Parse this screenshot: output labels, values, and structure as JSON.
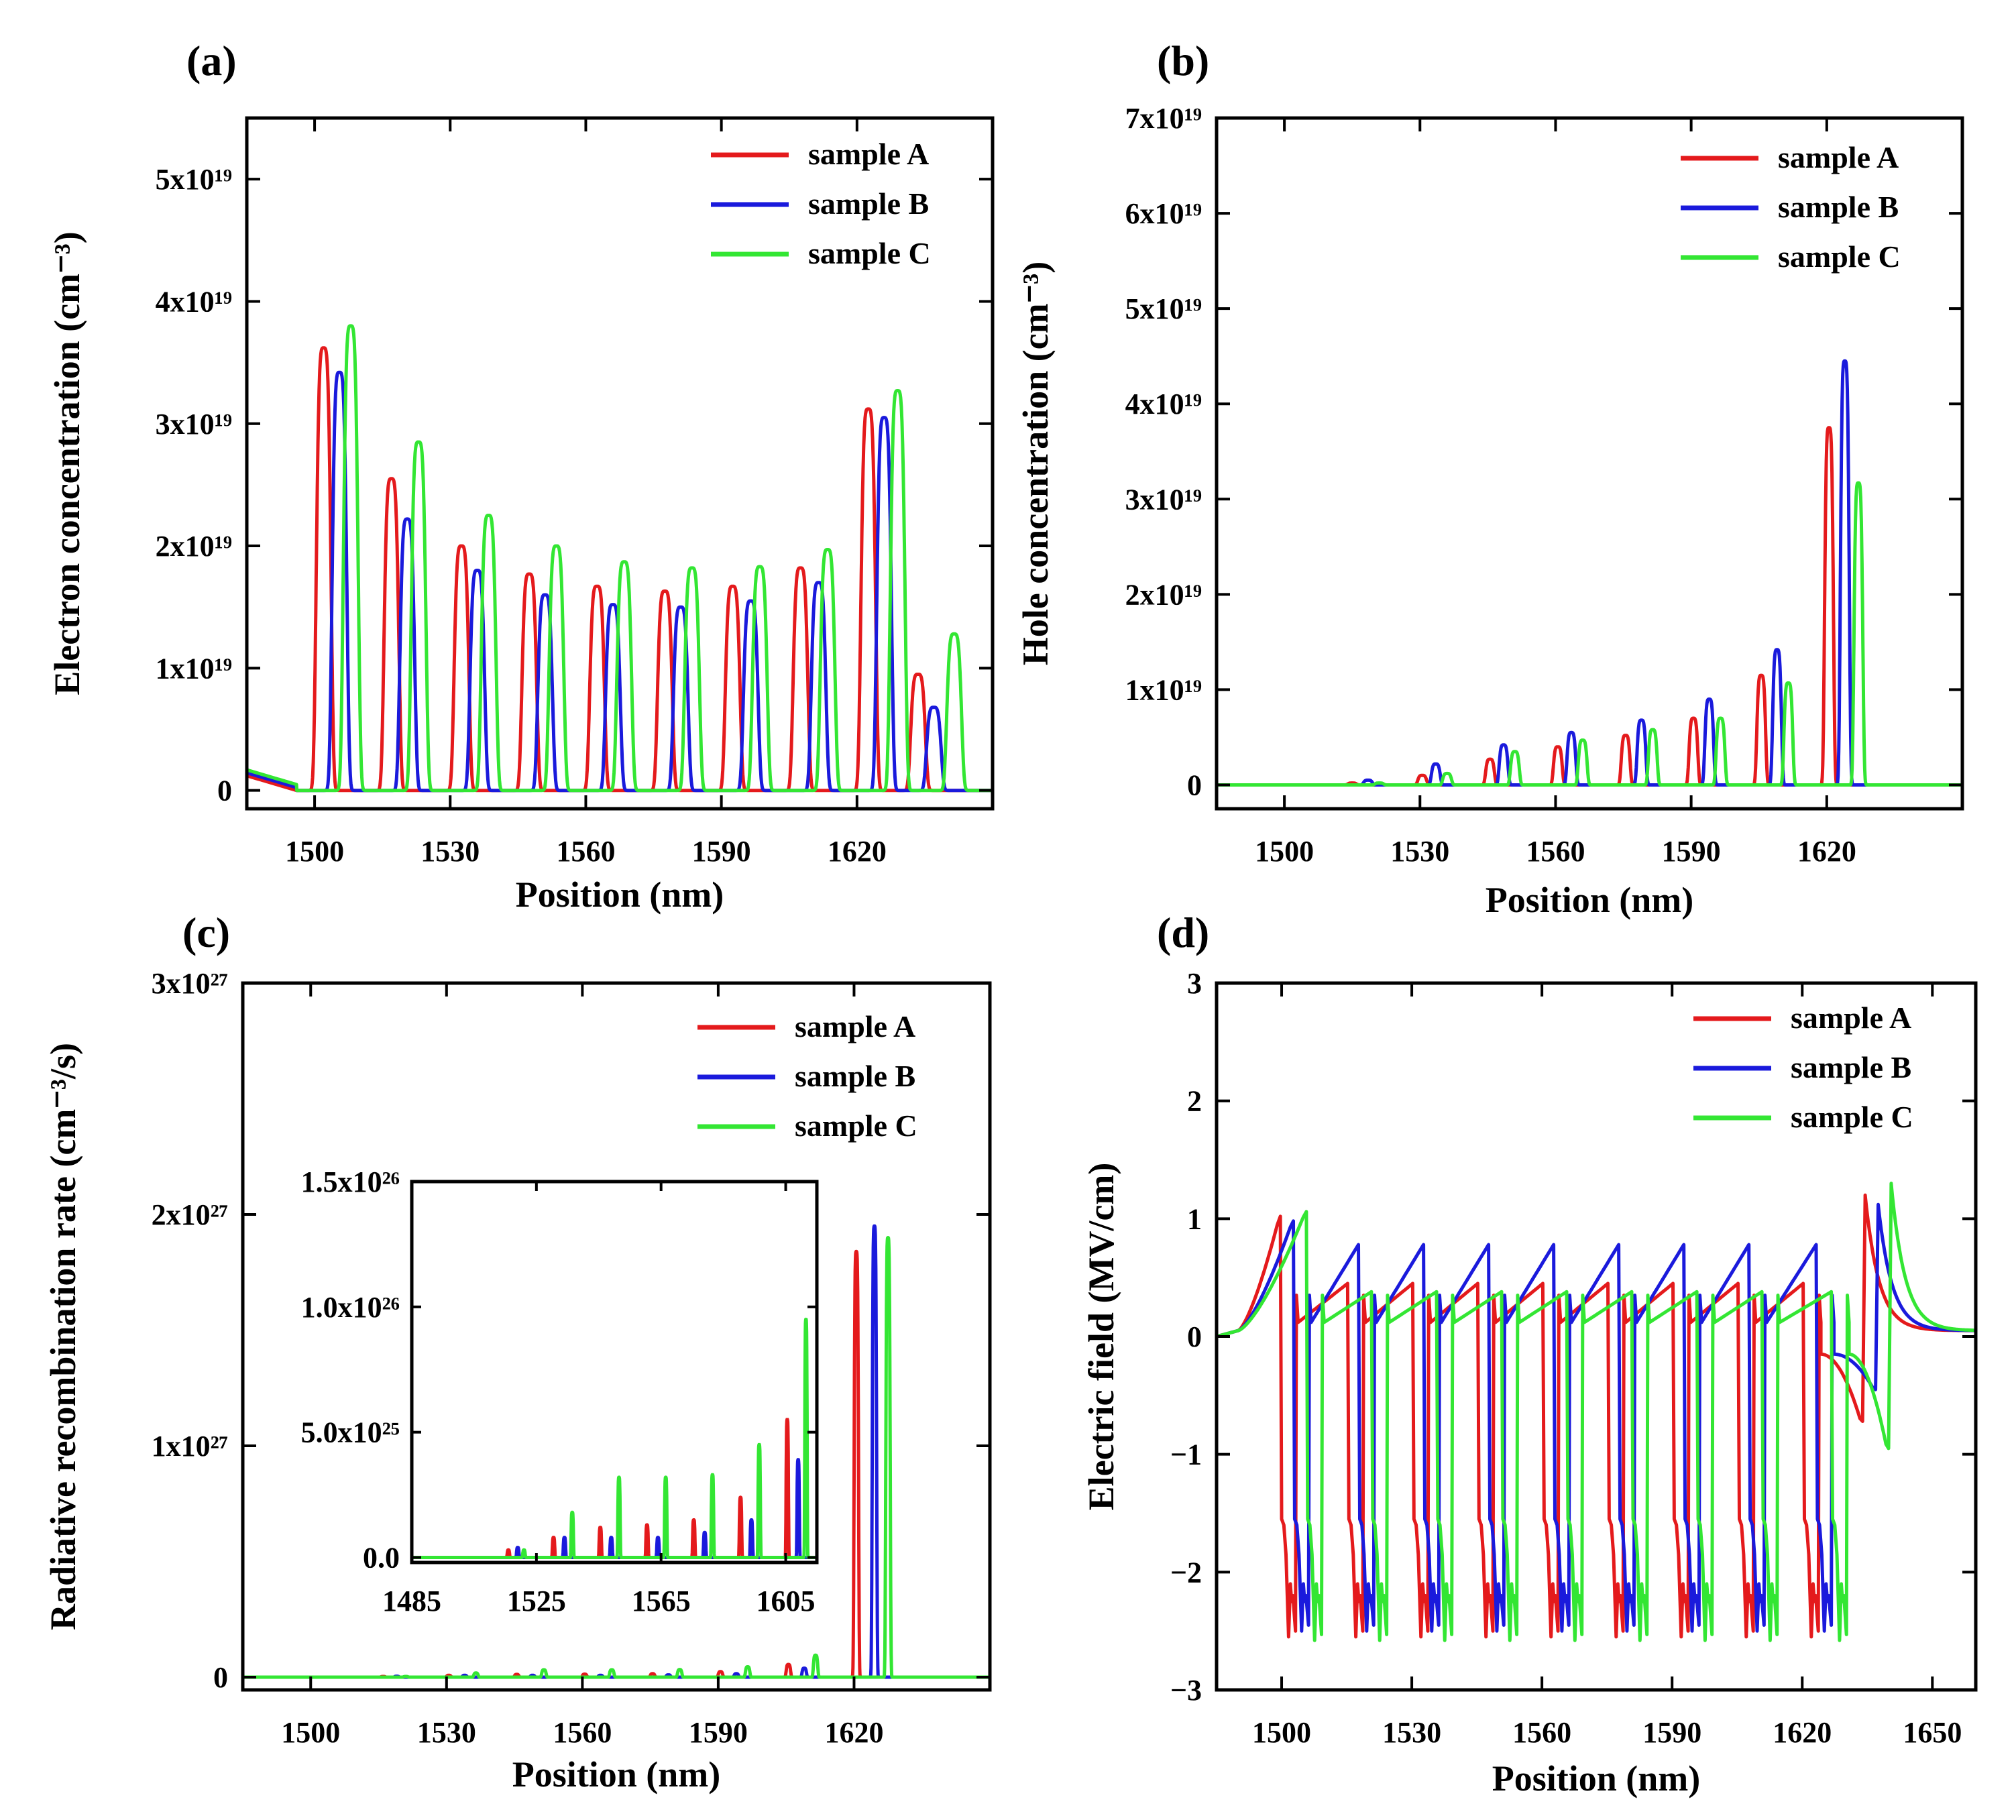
{
  "series_names": [
    "sample A",
    "sample B",
    "sample C"
  ],
  "colors": {
    "sample A": "#e41a1c",
    "sample B": "#1a1adc",
    "sample C": "#33e633"
  },
  "chart_data": [
    {
      "panel": "(a)",
      "type": "line",
      "xlabel": "Position (nm)",
      "ylabel": "Electron concentration (cm⁻³)",
      "xlim": [
        1485,
        1650
      ],
      "ylim": [
        -1.5e+18,
        5.5e+19
      ],
      "xticks": [
        {
          "v": 1500,
          "label": "1500"
        },
        {
          "v": 1530,
          "label": "1530"
        },
        {
          "v": 1560,
          "label": "1560"
        },
        {
          "v": 1590,
          "label": "1590"
        },
        {
          "v": 1620,
          "label": "1620"
        }
      ],
      "yticks": [
        {
          "v": 0,
          "label": "0"
        },
        {
          "v": 1e+19,
          "label": "1x10¹⁹"
        },
        {
          "v": 2e+19,
          "label": "2x10¹⁹"
        },
        {
          "v": 3e+19,
          "label": "3x10¹⁹"
        },
        {
          "v": 4e+19,
          "label": "4x10¹⁹"
        },
        {
          "v": 5e+19,
          "label": "5x10¹⁹"
        }
      ],
      "legend": "top-right",
      "baseline": {
        "start": 1485,
        "end": 1650,
        "value": 1.2e+18,
        "drop_end": 1496
      },
      "peak_width": 1.5,
      "series": [
        {
          "name": "sample A",
          "peaks": [
            [
              1502,
              3.62e+19
            ],
            [
              1517,
              2.55e+19
            ],
            [
              1532.5,
              2e+19
            ],
            [
              1547.5,
              1.77e+19
            ],
            [
              1562.5,
              1.67e+19
            ],
            [
              1577.5,
              1.63e+19
            ],
            [
              1592.5,
              1.67e+19
            ],
            [
              1607.5,
              1.82e+19
            ],
            [
              1622.5,
              3.12e+19
            ],
            [
              1633.5,
              9.5e+18
            ]
          ]
        },
        {
          "name": "sample B",
          "peaks": [
            [
              1505.5,
              3.42e+19
            ],
            [
              1520.5,
              2.22e+19
            ],
            [
              1536,
              1.8e+19
            ],
            [
              1551,
              1.6e+19
            ],
            [
              1566,
              1.52e+19
            ],
            [
              1581,
              1.5e+19
            ],
            [
              1596.5,
              1.55e+19
            ],
            [
              1611.5,
              1.7e+19
            ],
            [
              1626,
              3.05e+19
            ],
            [
              1637,
              6.8e+18
            ]
          ]
        },
        {
          "name": "sample C",
          "peaks": [
            [
              1508,
              3.8e+19
            ],
            [
              1523,
              2.85e+19
            ],
            [
              1538.5,
              2.25e+19
            ],
            [
              1553.5,
              2e+19
            ],
            [
              1568.5,
              1.87e+19
            ],
            [
              1583.5,
              1.82e+19
            ],
            [
              1598.5,
              1.83e+19
            ],
            [
              1613.5,
              1.97e+19
            ],
            [
              1629,
              3.27e+19
            ],
            [
              1641.5,
              1.28e+19
            ]
          ]
        }
      ]
    },
    {
      "panel": "(b)",
      "type": "line",
      "xlabel": "Position (nm)",
      "ylabel": "Hole concentration (cm⁻³)",
      "xlim": [
        1485,
        1650
      ],
      "ylim": [
        -2.5e+18,
        7e+19
      ],
      "xticks": [
        {
          "v": 1500,
          "label": "1500"
        },
        {
          "v": 1530,
          "label": "1530"
        },
        {
          "v": 1560,
          "label": "1560"
        },
        {
          "v": 1590,
          "label": "1590"
        },
        {
          "v": 1620,
          "label": "1620"
        }
      ],
      "yticks": [
        {
          "v": 0,
          "label": "0"
        },
        {
          "v": 1e+19,
          "label": "1x10¹⁹"
        },
        {
          "v": 2e+19,
          "label": "2x10¹⁹"
        },
        {
          "v": 3e+19,
          "label": "3x10¹⁹"
        },
        {
          "v": 4e+19,
          "label": "4x10¹⁹"
        },
        {
          "v": 5e+19,
          "label": "5x10¹⁹"
        },
        {
          "v": 6e+19,
          "label": "6x10¹⁹"
        },
        {
          "v": 7e+19,
          "label": "7x10¹⁹"
        }
      ],
      "legend": "top-right",
      "peak_width": 0.9,
      "series": [
        {
          "name": "sample A",
          "peaks": [
            [
              1515,
              2e+17
            ],
            [
              1530.5,
              1e+18
            ],
            [
              1545.5,
              2.7e+18
            ],
            [
              1560.5,
              4e+18
            ],
            [
              1575.5,
              5.2e+18
            ],
            [
              1590.5,
              7e+18
            ],
            [
              1605.5,
              1.15e+19
            ],
            [
              1620.5,
              3.75e+19
            ]
          ]
        },
        {
          "name": "sample B",
          "peaks": [
            [
              1518.5,
              5e+17
            ],
            [
              1533.5,
              2.2e+18
            ],
            [
              1548.5,
              4.2e+18
            ],
            [
              1563.5,
              5.5e+18
            ],
            [
              1579,
              6.8e+18
            ],
            [
              1594,
              9e+18
            ],
            [
              1609,
              1.42e+19
            ],
            [
              1624,
              4.45e+19
            ]
          ]
        },
        {
          "name": "sample C",
          "peaks": [
            [
              1521,
              2e+17
            ],
            [
              1536,
              1.2e+18
            ],
            [
              1551,
              3.5e+18
            ],
            [
              1566,
              4.7e+18
            ],
            [
              1581.5,
              5.8e+18
            ],
            [
              1596.5,
              7e+18
            ],
            [
              1611.5,
              1.07e+19
            ],
            [
              1627,
              3.17e+19
            ]
          ]
        }
      ]
    },
    {
      "panel": "(c)",
      "type": "line",
      "xlabel": "Position (nm)",
      "ylabel": "Radiative recombination rate (cm⁻³/s)",
      "xlim": [
        1485,
        1650
      ],
      "ylim": [
        -5.5e+25,
        3e+27
      ],
      "xticks": [
        {
          "v": 1500,
          "label": "1500"
        },
        {
          "v": 1530,
          "label": "1530"
        },
        {
          "v": 1560,
          "label": "1560"
        },
        {
          "v": 1590,
          "label": "1590"
        },
        {
          "v": 1620,
          "label": "1620"
        }
      ],
      "yticks": [
        {
          "v": 0,
          "label": "0"
        },
        {
          "v": 1e+27,
          "label": "1x10²⁷"
        },
        {
          "v": 2e+27,
          "label": "2x10²⁷"
        },
        {
          "v": 3e+27,
          "label": "3x10²⁷"
        }
      ],
      "legend": "top-right",
      "peak_width": 0.45,
      "series": [
        {
          "name": "sample A",
          "peaks": [
            [
              1516,
              3e+24
            ],
            [
              1530.5,
              8e+24
            ],
            [
              1545.5,
              1.2e+25
            ],
            [
              1560.5,
              1.3e+25
            ],
            [
              1575.5,
              1.5e+25
            ],
            [
              1590.5,
              2.4e+25
            ],
            [
              1605.5,
              5.5e+25
            ],
            [
              1620.5,
              1.84e+27
            ]
          ]
        },
        {
          "name": "sample B",
          "peaks": [
            [
              1519,
              4e+24
            ],
            [
              1534,
              8e+24
            ],
            [
              1549,
              8e+24
            ],
            [
              1564,
              8e+24
            ],
            [
              1579,
              1e+25
            ],
            [
              1594,
              1.5e+25
            ],
            [
              1609,
              3.9e+25
            ],
            [
              1624.5,
              1.95e+27
            ]
          ]
        },
        {
          "name": "sample C",
          "peaks": [
            [
              1521,
              3e+24
            ],
            [
              1536.5,
              1.8e+25
            ],
            [
              1551.5,
              3.2e+25
            ],
            [
              1566.5,
              3.2e+25
            ],
            [
              1581.5,
              3.3e+25
            ],
            [
              1596.5,
              4.5e+25
            ],
            [
              1611.5,
              9.5e+25
            ],
            [
              1627.5,
              1.9e+27
            ]
          ]
        }
      ],
      "inset": {
        "xlim": [
          1485,
          1615
        ],
        "ylim": [
          -2e+24,
          1.5e+26
        ],
        "xticks": [
          {
            "v": 1485,
            "label": "1485"
          },
          {
            "v": 1525,
            "label": "1525"
          },
          {
            "v": 1565,
            "label": "1565"
          },
          {
            "v": 1605,
            "label": "1605"
          }
        ],
        "yticks": [
          {
            "v": 0,
            "label": "0.0"
          },
          {
            "v": 5e+25,
            "label": "5.0x10²⁵"
          },
          {
            "v": 1e+26,
            "label": "1.0x10²⁶"
          },
          {
            "v": 1.5e+26,
            "label": "1.5x10²⁶"
          }
        ]
      }
    },
    {
      "panel": "(d)",
      "type": "line",
      "xlabel": "Position (nm)",
      "ylabel": "Electric field (MV/cm)",
      "xlim": [
        1485,
        1660
      ],
      "ylim": [
        -3,
        3
      ],
      "xticks": [
        {
          "v": 1500,
          "label": "1500"
        },
        {
          "v": 1530,
          "label": "1530"
        },
        {
          "v": 1560,
          "label": "1560"
        },
        {
          "v": 1590,
          "label": "1590"
        },
        {
          "v": 1620,
          "label": "1620"
        },
        {
          "v": 1650,
          "label": "1650"
        }
      ],
      "yticks": [
        {
          "v": -3,
          "label": "−3"
        },
        {
          "v": -2,
          "label": "−2"
        },
        {
          "v": -1,
          "label": "−1"
        },
        {
          "v": 0,
          "label": "0"
        },
        {
          "v": 1,
          "label": "1"
        },
        {
          "v": 2,
          "label": "2"
        },
        {
          "v": 3,
          "label": "3"
        }
      ],
      "legend": "top-right",
      "series": [
        {
          "name": "sample A",
          "wells": [
            1500,
            1515.5,
            1530.5,
            1545.5,
            1560.5,
            1575.5,
            1590.5,
            1605.5,
            1620.5
          ],
          "min": -2.55,
          "first_peak": 1.02,
          "barrier_peak": 0.45,
          "tail": {
            "x": 1634.5,
            "peak": 1.2,
            "dip": -0.72
          }
        },
        {
          "name": "sample B",
          "wells": [
            1503,
            1518,
            1533,
            1548,
            1563,
            1578,
            1593,
            1608,
            1623.5
          ],
          "min": -2.5,
          "first_peak": 0.98,
          "barrier_peak": 0.78,
          "tail": {
            "x": 1637.5,
            "peak": 1.12,
            "dip": -0.45
          }
        },
        {
          "name": "sample C",
          "wells": [
            1506,
            1521,
            1536,
            1551,
            1566,
            1581,
            1596,
            1611,
            1627
          ],
          "min": -2.58,
          "first_peak": 1.06,
          "barrier_peak": 0.38,
          "tail": {
            "x": 1640.5,
            "peak": 1.3,
            "dip": -0.95
          }
        }
      ]
    }
  ]
}
